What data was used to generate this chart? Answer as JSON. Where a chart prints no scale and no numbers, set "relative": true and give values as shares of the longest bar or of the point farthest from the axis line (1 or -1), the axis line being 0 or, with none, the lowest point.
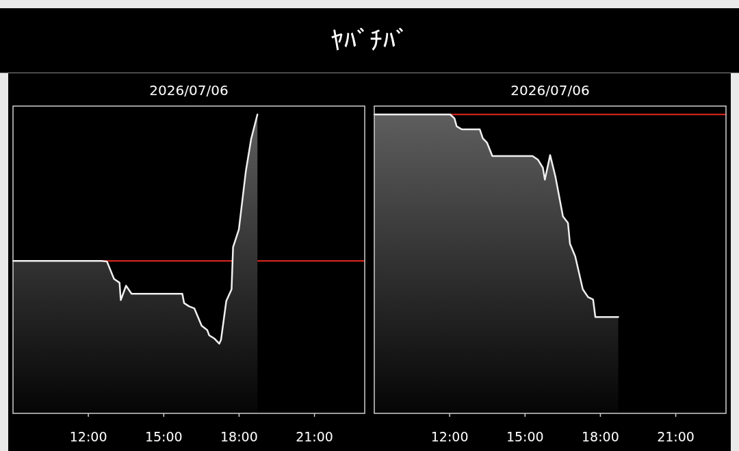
{
  "chart_data": [
    {
      "type": "area",
      "title": "2026/07/06",
      "annotations": [
        "ﾔﾊﾞﾁﾊﾞ"
      ],
      "relative": true,
      "color": "#f0f0f0",
      "xlim": [
        9,
        23
      ],
      "xticks": [
        {
          "value": 12,
          "label": "12:00"
        },
        {
          "value": 15,
          "label": "15:00"
        },
        {
          "value": 18,
          "label": "18:00"
        },
        {
          "value": 21,
          "label": "21:00"
        }
      ],
      "tick_labels": "x",
      "ref_lines": [
        {
          "axis": "y",
          "value": 0.51,
          "color": "#e8281e"
        }
      ],
      "x": [
        9.0,
        12.52,
        12.74,
        13.02,
        13.24,
        13.29,
        13.5,
        13.72,
        15.74,
        15.81,
        16.01,
        16.22,
        16.51,
        16.73,
        16.81,
        17.02,
        17.21,
        17.28,
        17.49,
        17.7,
        17.76,
        17.99,
        18.27,
        18.48,
        18.73
      ],
      "values": [
        0.51,
        0.51,
        0.508,
        0.45,
        0.437,
        0.379,
        0.427,
        0.4,
        0.4,
        0.369,
        0.358,
        0.351,
        0.293,
        0.279,
        0.261,
        0.25,
        0.233,
        0.246,
        0.376,
        0.415,
        0.556,
        0.615,
        0.811,
        0.918,
        1.0
      ]
    },
    {
      "type": "area",
      "title": "2026/07/06",
      "relative": true,
      "color": "#f0f0f0",
      "xlim": [
        9,
        23
      ],
      "xticks": [
        {
          "value": 12,
          "label": "12:00"
        },
        {
          "value": 15,
          "label": "15:00"
        },
        {
          "value": 18,
          "label": "18:00"
        },
        {
          "value": 21,
          "label": "21:00"
        }
      ],
      "tick_labels": "x",
      "ref_lines": [
        {
          "axis": "y",
          "value": 1.0,
          "color": "#e8281e"
        }
      ],
      "x": [
        9.0,
        12.02,
        12.19,
        12.28,
        12.49,
        13.2,
        13.32,
        13.49,
        13.7,
        15.3,
        15.51,
        15.71,
        15.79,
        16.0,
        16.21,
        16.51,
        16.71,
        16.79,
        17.0,
        17.3,
        17.51,
        17.71,
        17.8,
        18.71
      ],
      "values": [
        1.0,
        1.0,
        0.987,
        0.96,
        0.95,
        0.95,
        0.92,
        0.905,
        0.861,
        0.861,
        0.849,
        0.822,
        0.782,
        0.864,
        0.792,
        0.659,
        0.637,
        0.567,
        0.525,
        0.415,
        0.389,
        0.381,
        0.322,
        0.322
      ]
    }
  ]
}
